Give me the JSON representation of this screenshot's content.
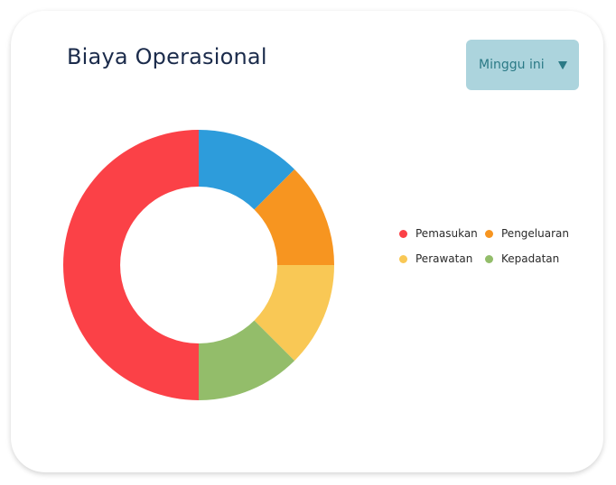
{
  "header": {
    "title": "Biaya Operasional"
  },
  "period_select": {
    "selected": "Minggu ini",
    "icon": "chevron-down-icon"
  },
  "colors": {
    "Pemasukan": "#fb4147",
    "Pengeluaran": "#f79520",
    "Perawatan": "#f9c855",
    "Kepadatan": "#93bd6a",
    "Blue": "#2d9cdb"
  },
  "chart_data": {
    "type": "pie",
    "donut": true,
    "title": "Biaya Operasional",
    "legend_position": "right",
    "slices": [
      {
        "label": "",
        "value": 12.5,
        "color": "#2d9cdb"
      },
      {
        "label": "Pengeluaran",
        "value": 12.5,
        "color": "#f79520"
      },
      {
        "label": "Perawatan",
        "value": 12.5,
        "color": "#f9c855"
      },
      {
        "label": "Kepadatan",
        "value": 12.5,
        "color": "#93bd6a"
      },
      {
        "label": "Pemasukan",
        "value": 50,
        "color": "#fb4147"
      }
    ],
    "legend": [
      {
        "label": "Pemasukan",
        "color": "#fb4147"
      },
      {
        "label": "Pengeluaran",
        "color": "#f79520"
      },
      {
        "label": "Perawatan",
        "color": "#f9c855"
      },
      {
        "label": "Kepadatan",
        "color": "#93bd6a"
      }
    ]
  }
}
